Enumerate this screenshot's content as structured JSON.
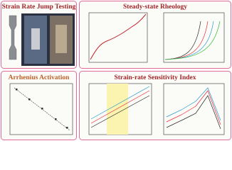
{
  "panels": [
    {
      "title": "Strain Rate Jump Testing"
    },
    {
      "title": "Steady-state Rheology"
    },
    {
      "title": "Arrhenius Activation"
    },
    {
      "title": "Strain-rate Sensitivity Index"
    }
  ]
}
